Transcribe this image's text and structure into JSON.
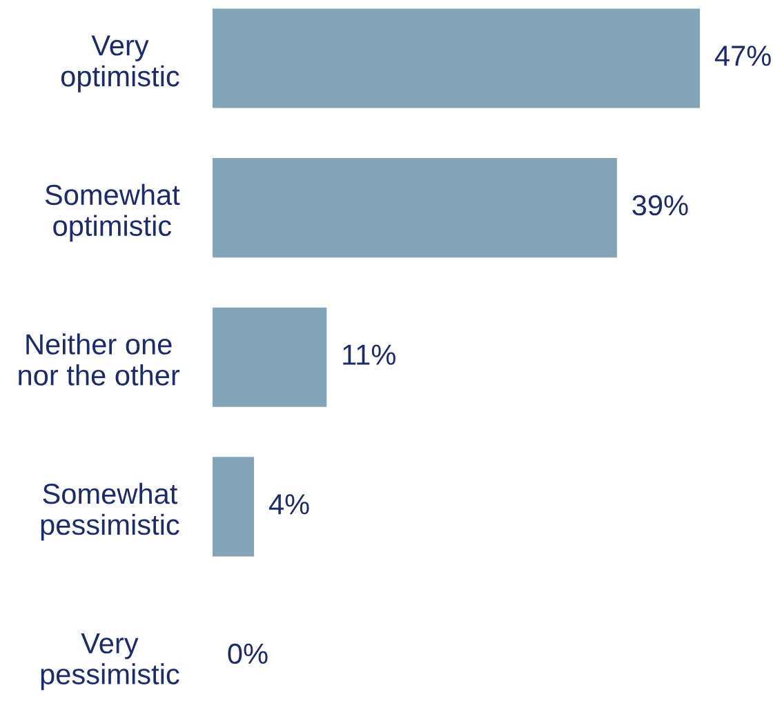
{
  "chart_data": {
    "type": "bar",
    "orientation": "horizontal",
    "categories": [
      "Very\noptimistic",
      "Somewhat\noptimistic",
      "Neither one\nnor the other",
      "Somewhat\npessimistic",
      "Very\npessimistic"
    ],
    "values": [
      47,
      39,
      11,
      4,
      0
    ],
    "value_labels": [
      "47%",
      "39%",
      "11%",
      "4%",
      "0%"
    ],
    "color": "#84a4b8"
  }
}
